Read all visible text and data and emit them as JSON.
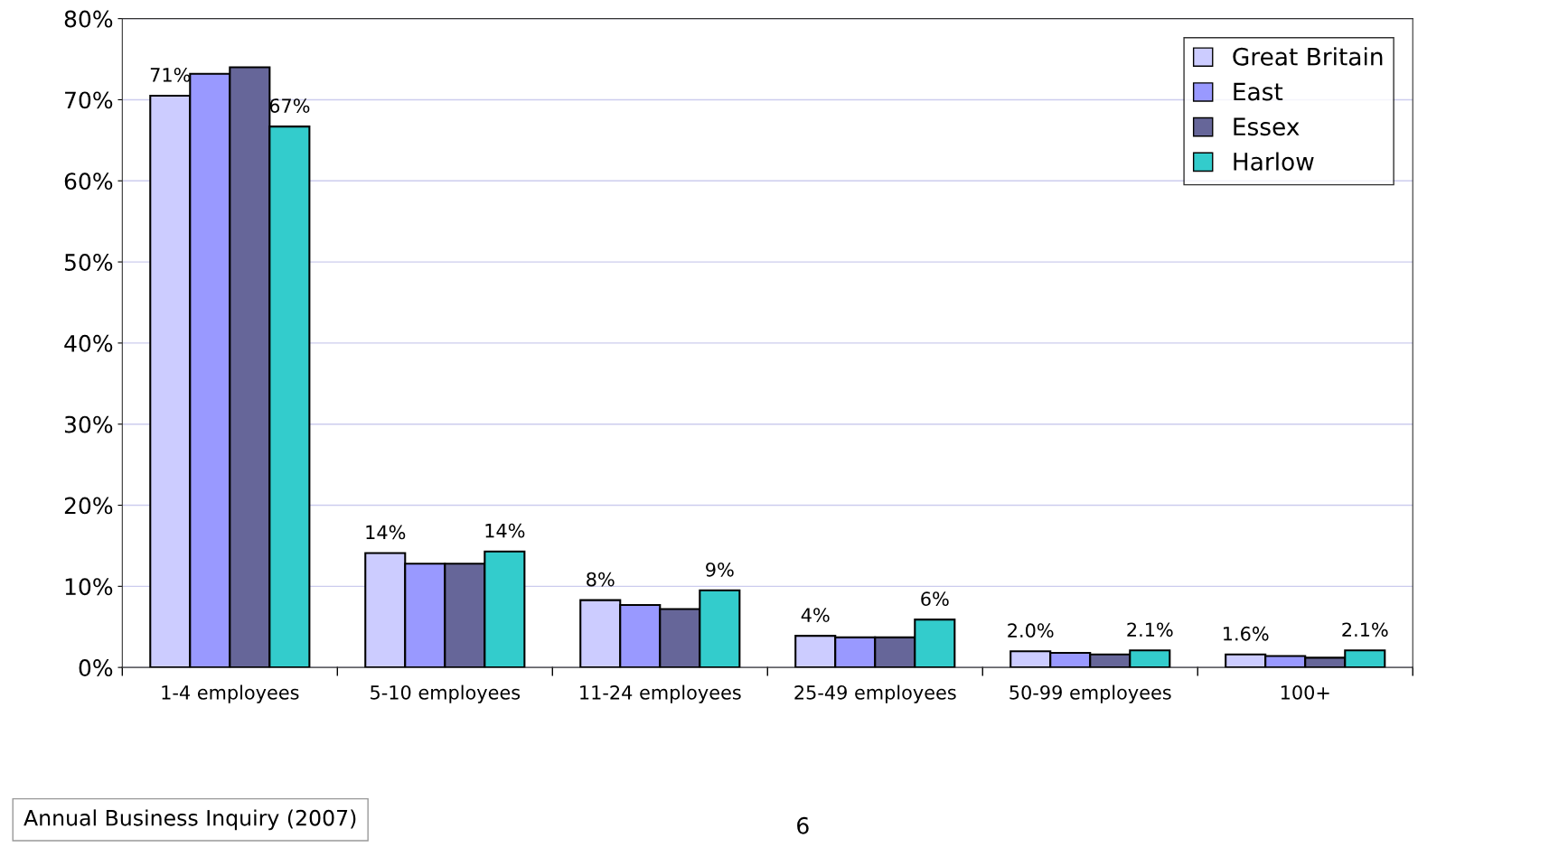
{
  "chart_data": {
    "type": "bar",
    "categories": [
      "1-4 employees",
      "5-10 employees",
      "11-24 employees",
      "25-49 employees",
      "50-99 employees",
      "100+"
    ],
    "series": [
      {
        "name": "Great Britain",
        "color": "#ccccff",
        "values": [
          70.5,
          14.1,
          8.3,
          3.9,
          2.0,
          1.6
        ],
        "value_labels": [
          "71%",
          "14%",
          "8%",
          "4%",
          "2.0%",
          "1.6%"
        ]
      },
      {
        "name": "East",
        "color": "#9999ff",
        "values": [
          73.2,
          12.8,
          7.7,
          3.7,
          1.8,
          1.4
        ]
      },
      {
        "name": "Essex",
        "color": "#666699",
        "values": [
          74.0,
          12.8,
          7.2,
          3.7,
          1.6,
          1.2
        ]
      },
      {
        "name": "Harlow",
        "color": "#33cccc",
        "values": [
          66.7,
          14.3,
          9.5,
          5.9,
          2.1,
          2.1
        ],
        "value_labels": [
          "67%",
          "14%",
          "9%",
          "6%",
          "2.1%",
          "2.1%"
        ]
      }
    ],
    "ylim": [
      0,
      80
    ],
    "yticks": [
      {
        "value": 0,
        "label": "0%"
      },
      {
        "value": 10,
        "label": "10%"
      },
      {
        "value": 20,
        "label": "20%"
      },
      {
        "value": 30,
        "label": "30%"
      },
      {
        "value": 40,
        "label": "40%"
      },
      {
        "value": 50,
        "label": "50%"
      },
      {
        "value": 60,
        "label": "60%"
      },
      {
        "value": 70,
        "label": "70%"
      },
      {
        "value": 80,
        "label": "80%"
      }
    ],
    "grid": "y",
    "legend": "top right",
    "annotations": [
      "Annual Business Inquiry (2007)",
      "6"
    ]
  }
}
